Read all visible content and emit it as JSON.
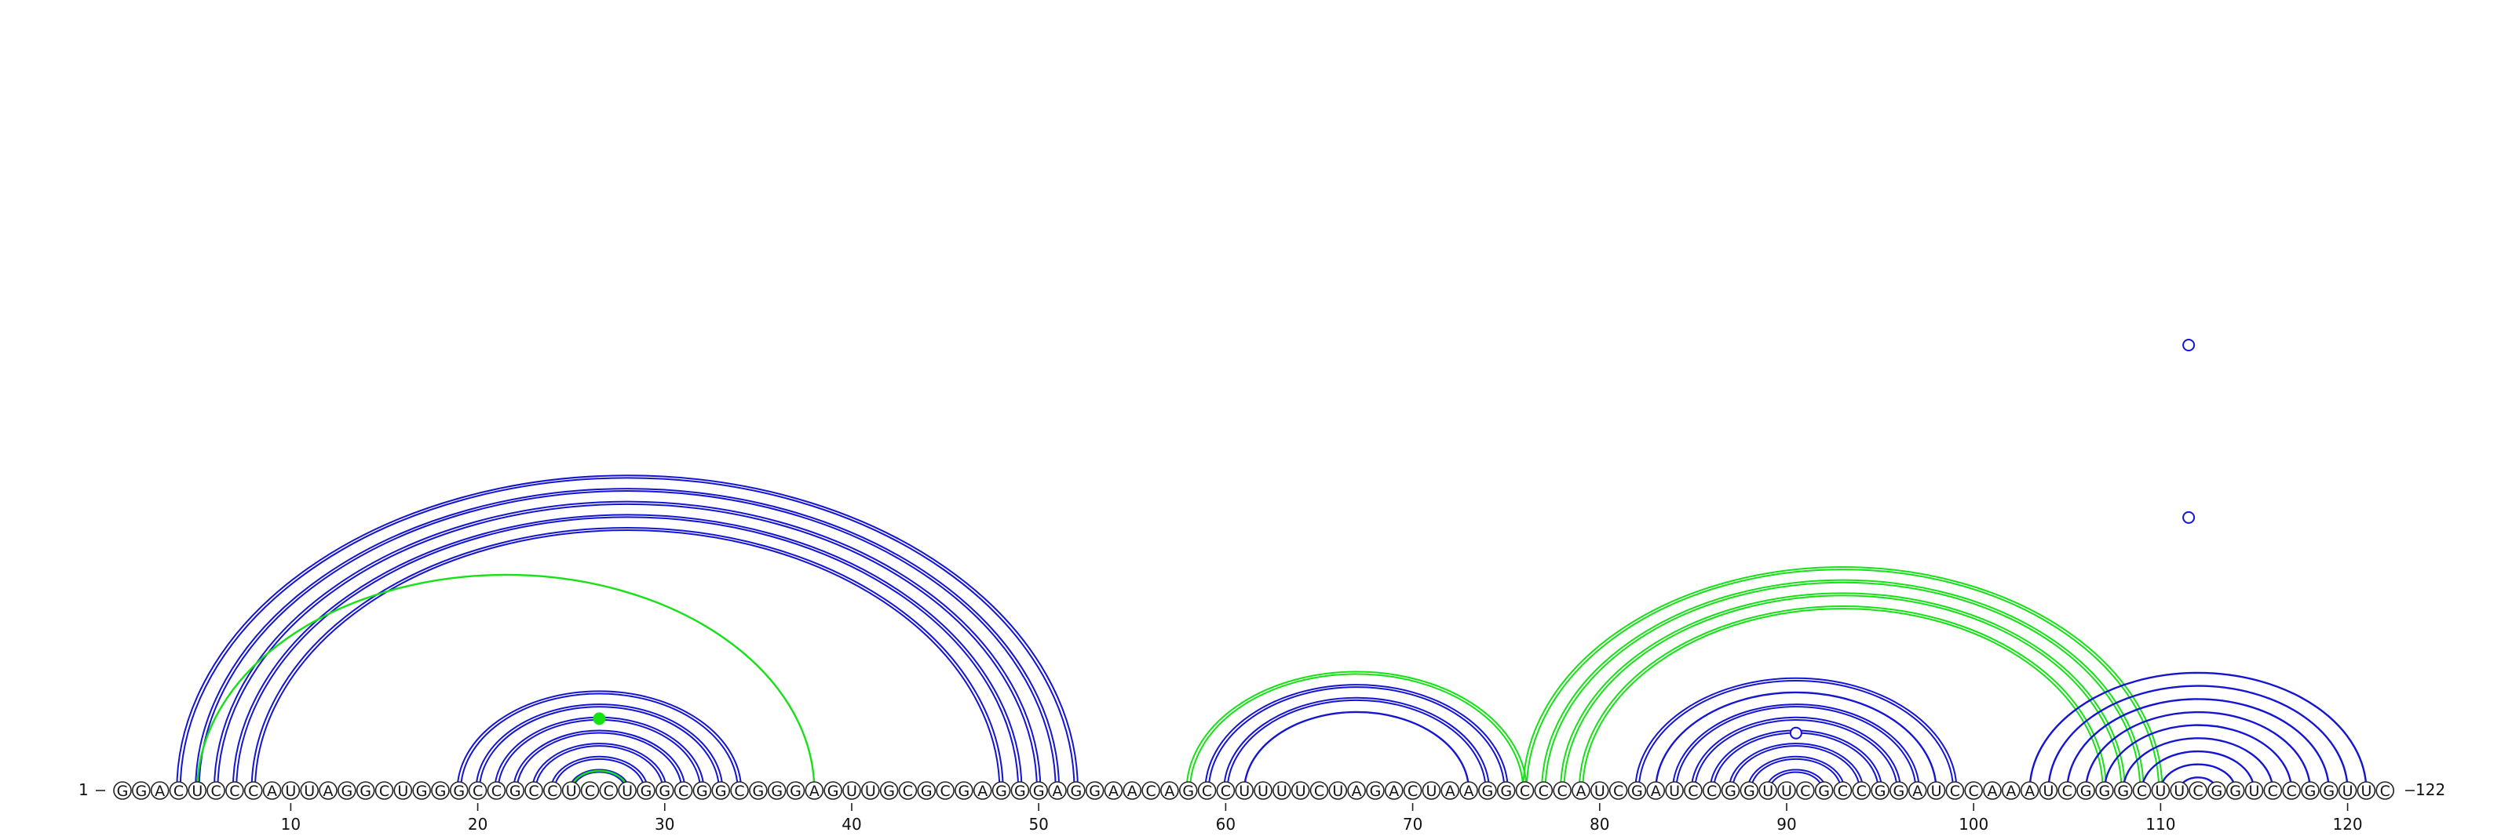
{
  "diagram": {
    "type": "rna-arc-diagram",
    "sequence": "GGACUCCCAUUAGGCUGGGCCGCCUCCUGGCGGCGGGAGUUGCGCGAGGGAGGAACAGCCUUUUCUAGACUAAGGCCCAUCGAUCCGGUUCGCCGGAUCCAAAUCGGGCUUCGGUCCGGUUC",
    "length": 122,
    "start_label": "1",
    "end_label": "122",
    "ticks": [
      10,
      20,
      30,
      40,
      50,
      60,
      70,
      80,
      90,
      100,
      110,
      120
    ],
    "colors": {
      "blue": "#1414d2",
      "green": "#16e016",
      "outline": "#222222"
    },
    "arc_groups": [
      {
        "color": "blue",
        "pairs": [
          [
            4,
            52
          ],
          [
            5,
            51
          ],
          [
            6,
            50
          ],
          [
            7,
            49
          ],
          [
            8,
            48
          ]
        ],
        "double": true
      },
      {
        "color": "green",
        "pairs": [
          [
            5,
            38
          ]
        ],
        "double": false
      },
      {
        "color": "blue",
        "pairs": [
          [
            19,
            34
          ],
          [
            20,
            33
          ],
          [
            21,
            32
          ],
          [
            22,
            31
          ],
          [
            23,
            30
          ],
          [
            24,
            29
          ],
          [
            25,
            28
          ]
        ],
        "double": true
      },
      {
        "color": "green",
        "pairs": [
          [
            25,
            28
          ]
        ],
        "double": false
      },
      {
        "color": "green",
        "pairs": [
          [
            58,
            76
          ]
        ],
        "double": true
      },
      {
        "color": "blue",
        "pairs": [
          [
            59,
            75
          ],
          [
            60,
            74
          ]
        ],
        "double": true
      },
      {
        "color": "blue",
        "pairs": [
          [
            61,
            73
          ]
        ],
        "double": false
      },
      {
        "color": "green",
        "pairs": [
          [
            76,
            110
          ],
          [
            77,
            109
          ],
          [
            78,
            108
          ],
          [
            79,
            107
          ]
        ],
        "double": true
      },
      {
        "color": "blue",
        "pairs": [
          [
            82,
            99
          ],
          [
            84,
            97
          ]
        ],
        "double": true
      },
      {
        "color": "blue",
        "pairs": [
          [
            85,
            96
          ],
          [
            86,
            95
          ],
          [
            87,
            94
          ],
          [
            88,
            93
          ],
          [
            89,
            92
          ]
        ],
        "double": true
      },
      {
        "color": "blue",
        "pairs": [
          [
            83,
            98
          ]
        ],
        "double": false
      },
      {
        "color": "blue",
        "pairs": [
          [
            103,
            121
          ],
          [
            104,
            120
          ],
          [
            105,
            119
          ],
          [
            106,
            118
          ],
          [
            107,
            117
          ],
          [
            108,
            116
          ],
          [
            109,
            115
          ],
          [
            110,
            114
          ],
          [
            111,
            113
          ]
        ],
        "double": false
      }
    ],
    "markers": [
      {
        "position": 26.5,
        "height": 10,
        "color": "green",
        "filled": true
      },
      {
        "position": 90.5,
        "height": 8,
        "color": "blue",
        "filled": false
      },
      {
        "position": 111.5,
        "height": 38,
        "color": "blue",
        "filled": false
      },
      {
        "position": 111.5,
        "height": 62,
        "color": "blue",
        "filled": false
      },
      {
        "position": 111.5,
        "height": 124,
        "color": "blue",
        "filled": false
      }
    ]
  }
}
